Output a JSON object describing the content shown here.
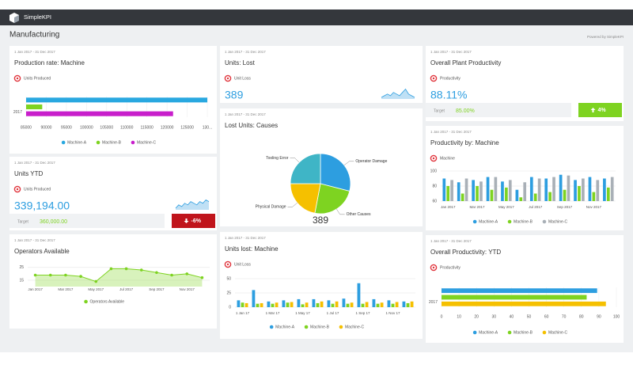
{
  "header": {
    "app_name": "SimpleKPI",
    "page_title": "Manufacturing",
    "powered_by": "Powered by SimpleKPI"
  },
  "widgets": [
    {
      "date_range": "1 Jan 2017 - 31 Dec 2017",
      "title": "Production rate: Machine",
      "metric": "Units Produced",
      "chart_data": {
        "type": "hbar",
        "categories": [
          "2017"
        ],
        "series": [
          {
            "name": "Machine-A",
            "color": "#29a8e0",
            "values": [
              130000
            ]
          },
          {
            "name": "Machine-B",
            "color": "#7ed321",
            "values": [
              89000
            ]
          },
          {
            "name": "Machine-C",
            "color": "#c81ecb",
            "values": [
              121500
            ]
          }
        ],
        "xlim": [
          85000,
          130000
        ],
        "xticks": [
          85000,
          90000,
          95000,
          100000,
          105000,
          110000,
          115000,
          120000,
          125000,
          {
            "value": 130000,
            "label": "130..."
          }
        ],
        "grid": true
      }
    },
    {
      "date_range": "1 Jan 2017 - 31 Dec 2017",
      "title": "Units YTD",
      "metric": "Units Produced",
      "kpi": {
        "value": "339,194.00",
        "sparkline": [
          10,
          12,
          11,
          13,
          12,
          14,
          13,
          12,
          14,
          13,
          15,
          14
        ],
        "target_label": "Target",
        "target": "360,000.00",
        "change": "-6%",
        "trend": "down",
        "change_color": "#c0141b"
      }
    },
    {
      "date_range": "1 Jan 2017 - 31 Dec 2017",
      "title": "Operators Available",
      "chart_data": {
        "type": "line",
        "categories": [
          "Jan 2017",
          null,
          "Mar 2017",
          null,
          "May 2017",
          null,
          "Jul 2017",
          null,
          "Sep 2017",
          null,
          "Nov 2017",
          null
        ],
        "series": [
          {
            "name": "Operators Available",
            "color": "#7ed321",
            "values": [
              19,
              19,
              19,
              18,
              14,
              24,
              24,
              23,
              21,
              19,
              20,
              17
            ]
          }
        ],
        "ylim": [
          10,
          28
        ],
        "yticks": [
          15,
          25
        ],
        "grid": true
      }
    },
    {
      "date_range": "1 Jan 2017 - 31 Dec 2017",
      "title": "Units: Lost",
      "metric": "Unit Loss",
      "kpi": {
        "value": "389",
        "sparkline": [
          3,
          4,
          5,
          4,
          6,
          5,
          4,
          6,
          8,
          5,
          4,
          3
        ]
      }
    },
    {
      "date_range": "1 Jan 2017 - 31 Dec 2017",
      "title": "Lost Units: Causes",
      "chart_data": {
        "type": "pie",
        "categories": [
          "Operator Damage",
          "Other Causes",
          "Physical Damage",
          "Tooling Error"
        ],
        "values": [
          29,
          24,
          22,
          25
        ],
        "colors": [
          "#2d9ee0",
          "#7ed321",
          "#f5c000",
          "#3fb5c6"
        ],
        "center_label": "389"
      }
    },
    {
      "date_range": "1 Jan 2017 - 31 Dec 2017",
      "title": "Units lost: Machine",
      "metric": "Unit Loss",
      "chart_data": {
        "type": "bar",
        "categories": [
          "1 Jan 17",
          null,
          "1 Mar 17",
          null,
          "1 May 17",
          null,
          "1 Jul 17",
          null,
          "1 Sep 17",
          null,
          "1 Nov 17",
          null
        ],
        "series": [
          {
            "name": "Machine-A",
            "color": "#2d9ee0",
            "values": [
              12,
              30,
              10,
              12,
              14,
              14,
              12,
              15,
              42,
              14,
              12,
              10
            ]
          },
          {
            "name": "Machine-B",
            "color": "#7ed321",
            "values": [
              8,
              6,
              6,
              8,
              5,
              7,
              6,
              6,
              6,
              6,
              6,
              7
            ]
          },
          {
            "name": "Machine-C",
            "color": "#f5c000",
            "values": [
              7,
              7,
              8,
              9,
              8,
              10,
              10,
              8,
              9,
              8,
              9,
              10
            ]
          }
        ],
        "ylim": [
          0,
          50
        ],
        "yticks": [
          0,
          25,
          50
        ],
        "grid": true
      }
    },
    {
      "date_range": "1 Jan 2017 - 31 Dec 2017",
      "title": "Overall Plant Productivity",
      "metric": "Productivity",
      "kpi": {
        "value": "88.11%",
        "sparkline": [],
        "target_label": "Target",
        "target": "85.00%",
        "change": "4%",
        "trend": "up",
        "change_color": "#7ed321"
      }
    },
    {
      "date_range": "1 Jan 2017 - 31 Dec 2017",
      "title": "Productivity by: Machine",
      "metric": "Machine",
      "chart_data": {
        "type": "bar",
        "categories": [
          "Jan 2017",
          null,
          "Mar 2017",
          null,
          "May 2017",
          null,
          "Jul 2017",
          null,
          "Sep 2017",
          null,
          "Nov 2017",
          null
        ],
        "series": [
          {
            "name": "Machine-A",
            "color": "#2d9ee0",
            "values": [
              90,
              85,
              88,
              92,
              86,
              75,
              92,
              90,
              95,
              88,
              92,
              90
            ]
          },
          {
            "name": "Machine-B",
            "color": "#7ed321",
            "values": [
              80,
              70,
              80,
              75,
              78,
              65,
              70,
              72,
              75,
              80,
              72,
              78
            ]
          },
          {
            "name": "Machine-C",
            "color": "#a9b0b7",
            "values": [
              88,
              90,
              86,
              92,
              88,
              85,
              90,
              92,
              94,
              90,
              88,
              92
            ]
          }
        ],
        "ylim": [
          60,
          100
        ],
        "yticks": [
          60,
          80,
          100
        ],
        "grid": true
      }
    },
    {
      "date_range": "1 Jan 2017 - 31 Dec 2017",
      "title": "Overall Productivity: YTD",
      "metric": "Productivity",
      "chart_data": {
        "type": "hbar",
        "categories": [
          "2017"
        ],
        "series": [
          {
            "name": "Machine-A",
            "color": "#2d9ee0",
            "values": [
              89
            ]
          },
          {
            "name": "Machine-B",
            "color": "#7ed321",
            "values": [
              83
            ]
          },
          {
            "name": "Machine-C",
            "color": "#f5c000",
            "values": [
              94
            ]
          }
        ],
        "xlim": [
          0,
          100
        ],
        "xticks": [
          0,
          10,
          20,
          30,
          40,
          50,
          60,
          70,
          80,
          90,
          100
        ],
        "grid": true
      }
    }
  ]
}
